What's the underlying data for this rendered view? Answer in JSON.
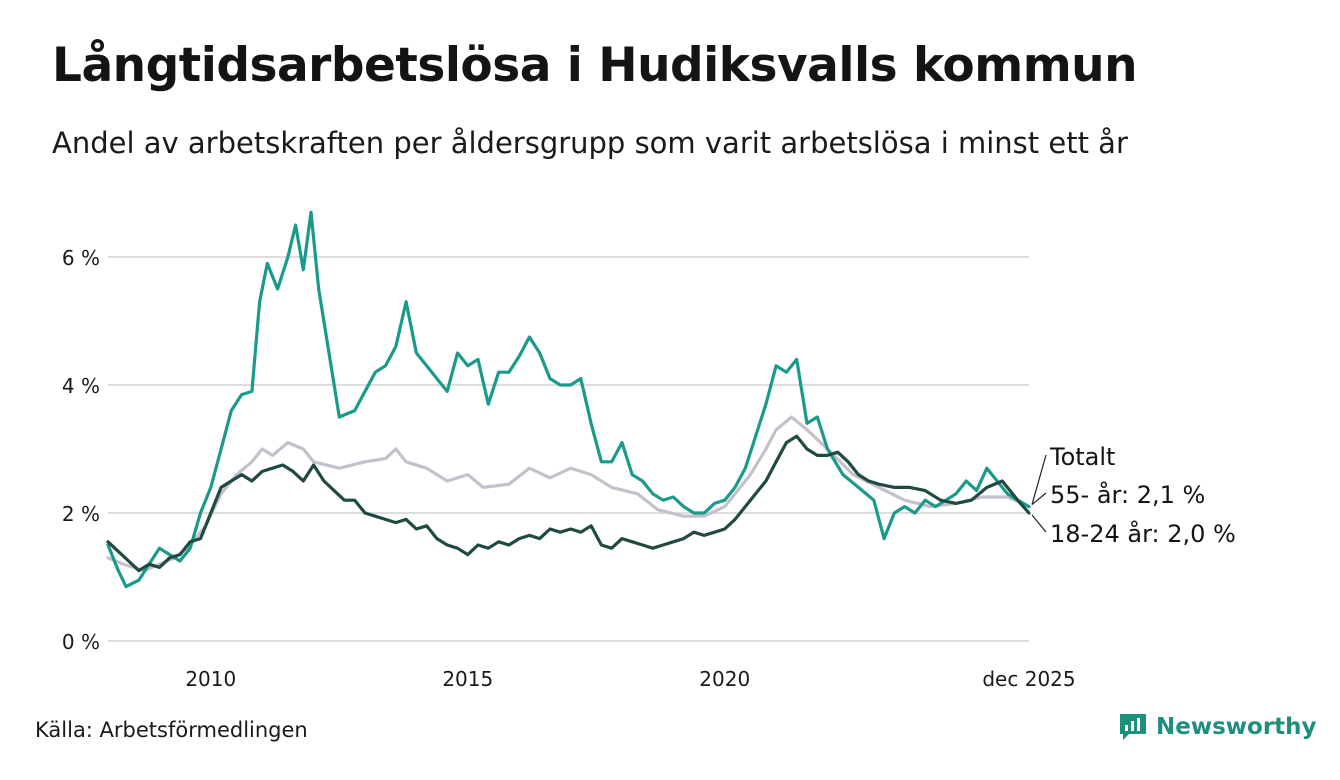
{
  "title": "Långtidsarbetslösa i Hudiksvalls kommun",
  "subtitle": "Andel av arbetskraften per åldersgrupp som varit arbetslösa i minst ett år",
  "source": "Källa: Arbetsförmedlingen",
  "brand": "Newsworthy",
  "colors": {
    "teal": "#1a9a8a",
    "dark": "#1f4a42",
    "gray": "#c4c0cc",
    "grid": "#dddddd",
    "brand": "#1f8f7d"
  },
  "chart_data": {
    "type": "line",
    "title": "Långtidsarbetslösa i Hudiksvalls kommun",
    "xlabel": "",
    "ylabel": "",
    "xlim": [
      2008.0,
      2025.92
    ],
    "ylim": [
      0,
      6.8
    ],
    "y_ticks": [
      {
        "v": 0,
        "label": "0 %"
      },
      {
        "v": 2,
        "label": "2 %"
      },
      {
        "v": 4,
        "label": "4 %"
      },
      {
        "v": 6,
        "label": "6 %"
      }
    ],
    "x_ticks": [
      {
        "v": 2010,
        "label": "2010"
      },
      {
        "v": 2015,
        "label": "2015"
      },
      {
        "v": 2020,
        "label": "2020"
      },
      {
        "v": 2025.92,
        "label": "dec 2025"
      }
    ],
    "series": [
      {
        "name": "Totalt",
        "key": "gray",
        "label": "Totalt",
        "points": [
          [
            2008.0,
            1.3
          ],
          [
            2008.3,
            1.2
          ],
          [
            2008.7,
            1.1
          ],
          [
            2009.0,
            1.2
          ],
          [
            2009.3,
            1.3
          ],
          [
            2009.6,
            1.5
          ],
          [
            2009.9,
            1.8
          ],
          [
            2010.2,
            2.3
          ],
          [
            2010.5,
            2.6
          ],
          [
            2010.8,
            2.8
          ],
          [
            2011.0,
            3.0
          ],
          [
            2011.2,
            2.9
          ],
          [
            2011.5,
            3.1
          ],
          [
            2011.8,
            3.0
          ],
          [
            2012.0,
            2.8
          ],
          [
            2012.5,
            2.7
          ],
          [
            2013.0,
            2.8
          ],
          [
            2013.4,
            2.85
          ],
          [
            2013.6,
            3.0
          ],
          [
            2013.8,
            2.8
          ],
          [
            2014.2,
            2.7
          ],
          [
            2014.6,
            2.5
          ],
          [
            2015.0,
            2.6
          ],
          [
            2015.3,
            2.4
          ],
          [
            2015.8,
            2.45
          ],
          [
            2016.2,
            2.7
          ],
          [
            2016.6,
            2.55
          ],
          [
            2017.0,
            2.7
          ],
          [
            2017.4,
            2.6
          ],
          [
            2017.8,
            2.4
          ],
          [
            2018.3,
            2.3
          ],
          [
            2018.7,
            2.05
          ],
          [
            2019.2,
            1.95
          ],
          [
            2019.6,
            1.95
          ],
          [
            2020.0,
            2.1
          ],
          [
            2020.5,
            2.6
          ],
          [
            2020.8,
            3.0
          ],
          [
            2021.0,
            3.3
          ],
          [
            2021.3,
            3.5
          ],
          [
            2021.6,
            3.3
          ],
          [
            2022.0,
            3.0
          ],
          [
            2022.5,
            2.6
          ],
          [
            2023.0,
            2.4
          ],
          [
            2023.5,
            2.2
          ],
          [
            2024.0,
            2.1
          ],
          [
            2024.5,
            2.15
          ],
          [
            2025.0,
            2.25
          ],
          [
            2025.5,
            2.25
          ],
          [
            2025.92,
            2.1
          ]
        ]
      },
      {
        "name": "55- år",
        "key": "teal",
        "label": "55- år: 2,1 %",
        "points": [
          [
            2008.0,
            1.5
          ],
          [
            2008.2,
            1.1
          ],
          [
            2008.35,
            0.85
          ],
          [
            2008.6,
            0.95
          ],
          [
            2008.8,
            1.2
          ],
          [
            2009.0,
            1.45
          ],
          [
            2009.2,
            1.35
          ],
          [
            2009.4,
            1.25
          ],
          [
            2009.6,
            1.45
          ],
          [
            2009.8,
            2.0
          ],
          [
            2010.0,
            2.4
          ],
          [
            2010.2,
            3.0
          ],
          [
            2010.4,
            3.6
          ],
          [
            2010.6,
            3.85
          ],
          [
            2010.8,
            3.9
          ],
          [
            2010.95,
            5.3
          ],
          [
            2011.1,
            5.9
          ],
          [
            2011.3,
            5.5
          ],
          [
            2011.5,
            6.0
          ],
          [
            2011.65,
            6.5
          ],
          [
            2011.8,
            5.8
          ],
          [
            2011.95,
            6.7
          ],
          [
            2012.1,
            5.5
          ],
          [
            2012.3,
            4.5
          ],
          [
            2012.5,
            3.5
          ],
          [
            2012.8,
            3.6
          ],
          [
            2013.0,
            3.9
          ],
          [
            2013.2,
            4.2
          ],
          [
            2013.4,
            4.3
          ],
          [
            2013.6,
            4.6
          ],
          [
            2013.8,
            5.3
          ],
          [
            2014.0,
            4.5
          ],
          [
            2014.2,
            4.3
          ],
          [
            2014.4,
            4.1
          ],
          [
            2014.6,
            3.9
          ],
          [
            2014.8,
            4.5
          ],
          [
            2015.0,
            4.3
          ],
          [
            2015.2,
            4.4
          ],
          [
            2015.4,
            3.7
          ],
          [
            2015.6,
            4.2
          ],
          [
            2015.8,
            4.2
          ],
          [
            2016.0,
            4.45
          ],
          [
            2016.2,
            4.75
          ],
          [
            2016.4,
            4.5
          ],
          [
            2016.6,
            4.1
          ],
          [
            2016.8,
            4.0
          ],
          [
            2017.0,
            4.0
          ],
          [
            2017.2,
            4.1
          ],
          [
            2017.4,
            3.4
          ],
          [
            2017.6,
            2.8
          ],
          [
            2017.8,
            2.8
          ],
          [
            2018.0,
            3.1
          ],
          [
            2018.2,
            2.6
          ],
          [
            2018.4,
            2.5
          ],
          [
            2018.6,
            2.3
          ],
          [
            2018.8,
            2.2
          ],
          [
            2019.0,
            2.25
          ],
          [
            2019.2,
            2.1
          ],
          [
            2019.4,
            2.0
          ],
          [
            2019.6,
            2.0
          ],
          [
            2019.8,
            2.15
          ],
          [
            2020.0,
            2.2
          ],
          [
            2020.2,
            2.4
          ],
          [
            2020.4,
            2.7
          ],
          [
            2020.6,
            3.2
          ],
          [
            2020.8,
            3.7
          ],
          [
            2021.0,
            4.3
          ],
          [
            2021.2,
            4.2
          ],
          [
            2021.4,
            4.4
          ],
          [
            2021.6,
            3.4
          ],
          [
            2021.8,
            3.5
          ],
          [
            2022.0,
            3.0
          ],
          [
            2022.3,
            2.6
          ],
          [
            2022.6,
            2.4
          ],
          [
            2022.9,
            2.2
          ],
          [
            2023.1,
            1.6
          ],
          [
            2023.3,
            2.0
          ],
          [
            2023.5,
            2.1
          ],
          [
            2023.7,
            2.0
          ],
          [
            2023.9,
            2.2
          ],
          [
            2024.1,
            2.1
          ],
          [
            2024.3,
            2.2
          ],
          [
            2024.5,
            2.3
          ],
          [
            2024.7,
            2.5
          ],
          [
            2024.9,
            2.35
          ],
          [
            2025.1,
            2.7
          ],
          [
            2025.3,
            2.5
          ],
          [
            2025.5,
            2.3
          ],
          [
            2025.7,
            2.2
          ],
          [
            2025.92,
            2.1
          ]
        ]
      },
      {
        "name": "18-24 år",
        "key": "dark",
        "label": "18-24 år: 2,0 %",
        "points": [
          [
            2008.0,
            1.55
          ],
          [
            2008.2,
            1.4
          ],
          [
            2008.4,
            1.25
          ],
          [
            2008.6,
            1.1
          ],
          [
            2008.8,
            1.2
          ],
          [
            2009.0,
            1.15
          ],
          [
            2009.2,
            1.3
          ],
          [
            2009.4,
            1.35
          ],
          [
            2009.6,
            1.55
          ],
          [
            2009.8,
            1.6
          ],
          [
            2010.0,
            2.0
          ],
          [
            2010.2,
            2.4
          ],
          [
            2010.4,
            2.5
          ],
          [
            2010.6,
            2.6
          ],
          [
            2010.8,
            2.5
          ],
          [
            2011.0,
            2.65
          ],
          [
            2011.2,
            2.7
          ],
          [
            2011.4,
            2.75
          ],
          [
            2011.6,
            2.65
          ],
          [
            2011.8,
            2.5
          ],
          [
            2012.0,
            2.75
          ],
          [
            2012.2,
            2.5
          ],
          [
            2012.4,
            2.35
          ],
          [
            2012.6,
            2.2
          ],
          [
            2012.8,
            2.2
          ],
          [
            2013.0,
            2.0
          ],
          [
            2013.2,
            1.95
          ],
          [
            2013.4,
            1.9
          ],
          [
            2013.6,
            1.85
          ],
          [
            2013.8,
            1.9
          ],
          [
            2014.0,
            1.75
          ],
          [
            2014.2,
            1.8
          ],
          [
            2014.4,
            1.6
          ],
          [
            2014.6,
            1.5
          ],
          [
            2014.8,
            1.45
          ],
          [
            2015.0,
            1.35
          ],
          [
            2015.2,
            1.5
          ],
          [
            2015.4,
            1.45
          ],
          [
            2015.6,
            1.55
          ],
          [
            2015.8,
            1.5
          ],
          [
            2016.0,
            1.6
          ],
          [
            2016.2,
            1.65
          ],
          [
            2016.4,
            1.6
          ],
          [
            2016.6,
            1.75
          ],
          [
            2016.8,
            1.7
          ],
          [
            2017.0,
            1.75
          ],
          [
            2017.2,
            1.7
          ],
          [
            2017.4,
            1.8
          ],
          [
            2017.6,
            1.5
          ],
          [
            2017.8,
            1.45
          ],
          [
            2018.0,
            1.6
          ],
          [
            2018.2,
            1.55
          ],
          [
            2018.4,
            1.5
          ],
          [
            2018.6,
            1.45
          ],
          [
            2018.8,
            1.5
          ],
          [
            2019.0,
            1.55
          ],
          [
            2019.2,
            1.6
          ],
          [
            2019.4,
            1.7
          ],
          [
            2019.6,
            1.65
          ],
          [
            2019.8,
            1.7
          ],
          [
            2020.0,
            1.75
          ],
          [
            2020.2,
            1.9
          ],
          [
            2020.4,
            2.1
          ],
          [
            2020.6,
            2.3
          ],
          [
            2020.8,
            2.5
          ],
          [
            2021.0,
            2.8
          ],
          [
            2021.2,
            3.1
          ],
          [
            2021.4,
            3.2
          ],
          [
            2021.6,
            3.0
          ],
          [
            2021.8,
            2.9
          ],
          [
            2022.0,
            2.9
          ],
          [
            2022.2,
            2.95
          ],
          [
            2022.4,
            2.8
          ],
          [
            2022.6,
            2.6
          ],
          [
            2022.8,
            2.5
          ],
          [
            2023.0,
            2.45
          ],
          [
            2023.3,
            2.4
          ],
          [
            2023.6,
            2.4
          ],
          [
            2023.9,
            2.35
          ],
          [
            2024.2,
            2.2
          ],
          [
            2024.5,
            2.15
          ],
          [
            2024.8,
            2.2
          ],
          [
            2025.1,
            2.4
          ],
          [
            2025.4,
            2.5
          ],
          [
            2025.7,
            2.2
          ],
          [
            2025.92,
            2.0
          ]
        ]
      }
    ]
  }
}
